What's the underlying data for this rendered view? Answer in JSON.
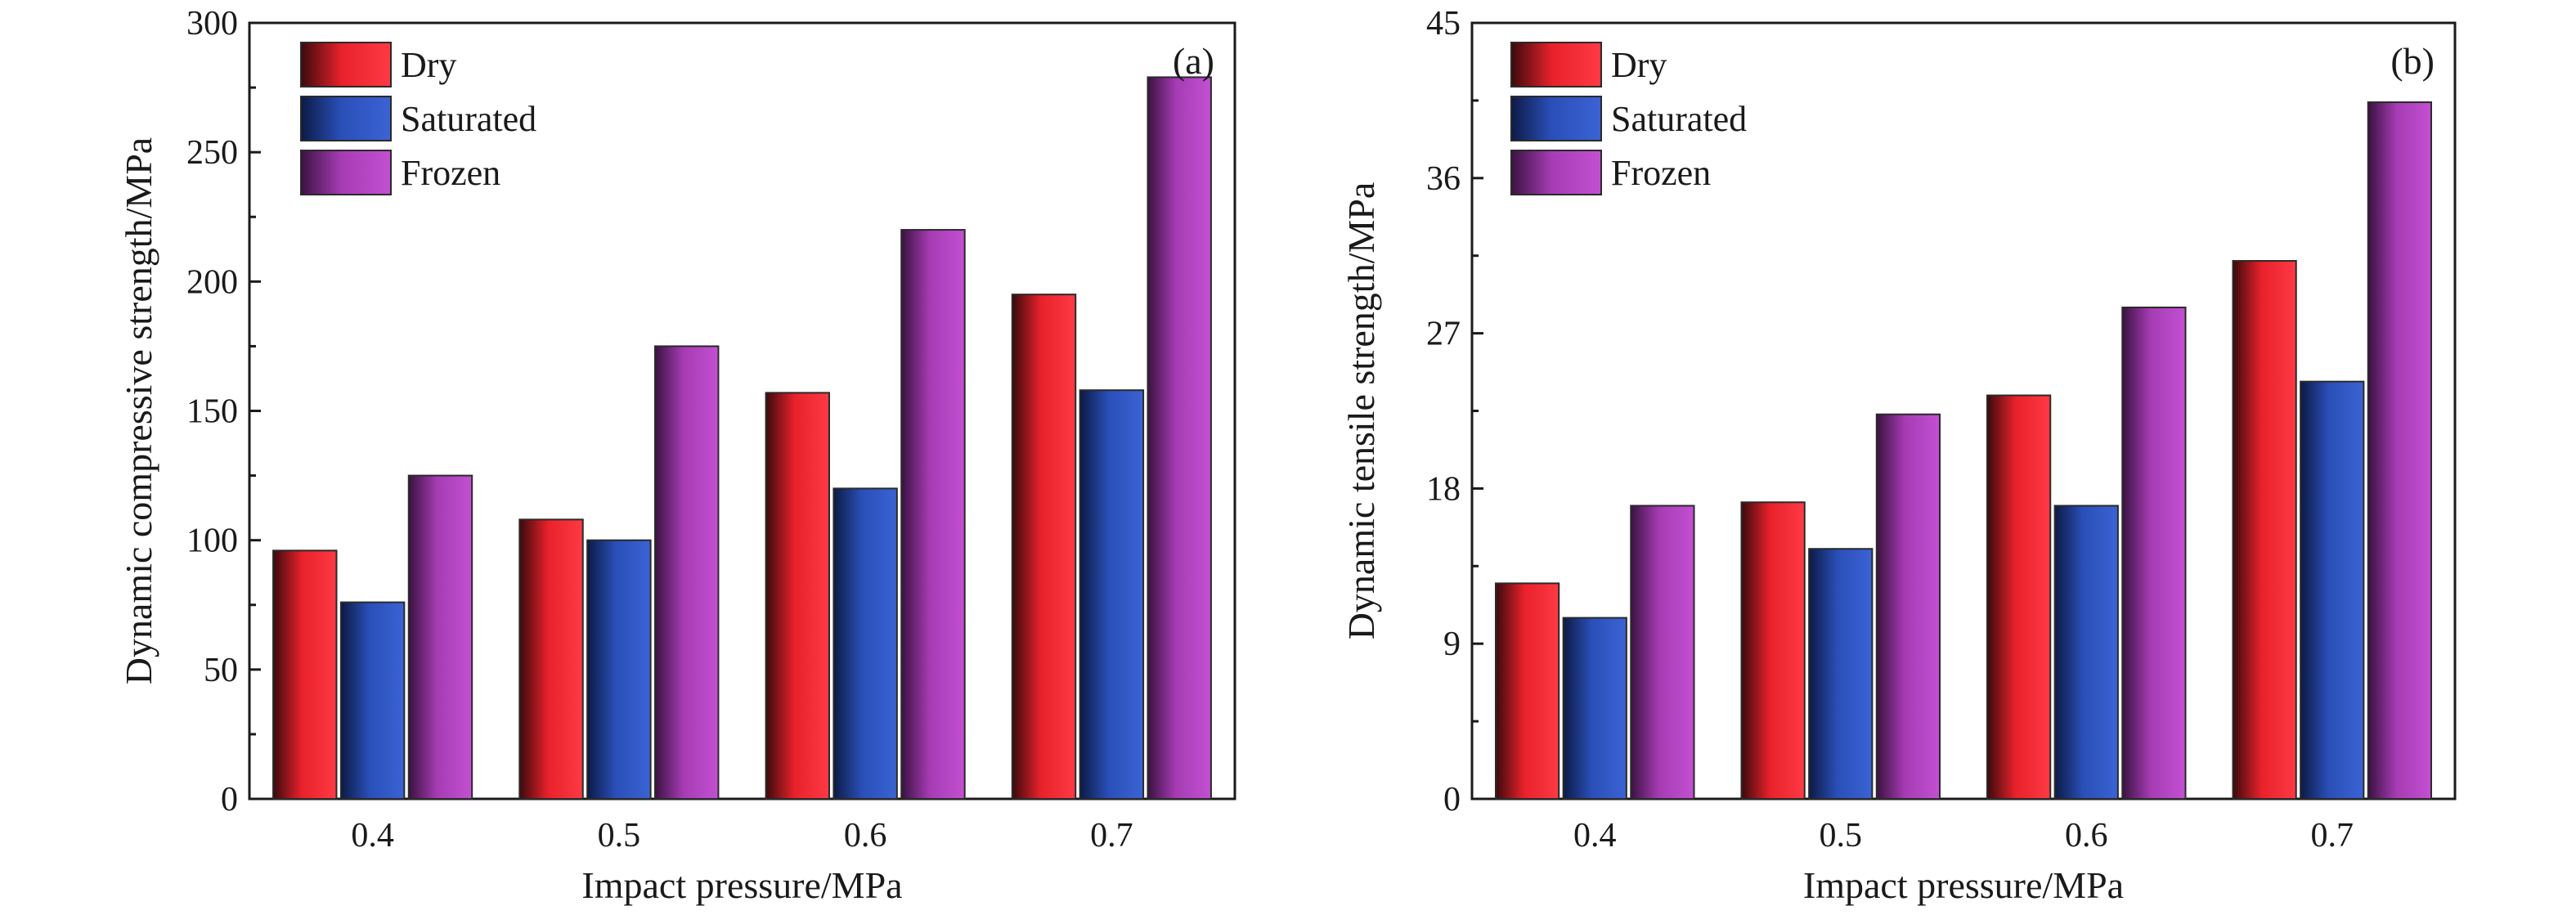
{
  "chart_data": [
    {
      "type": "bar",
      "panel_label": "(a)",
      "categories": [
        "0.4",
        "0.5",
        "0.6",
        "0.7"
      ],
      "series": [
        {
          "name": "Dry",
          "values": [
            96,
            108,
            157,
            195
          ]
        },
        {
          "name": "Saturated",
          "values": [
            76,
            100,
            120,
            158
          ]
        },
        {
          "name": "Frozen",
          "values": [
            125,
            175,
            220,
            279
          ]
        }
      ],
      "xlabel": "Impact pressure/MPa",
      "ylabel": "Dynamic compressive strength/MPa",
      "ylim": [
        0,
        300
      ],
      "yticks": [
        "0",
        "50",
        "100",
        "150",
        "200",
        "250",
        "300"
      ],
      "legend_position": "top-left",
      "grid": false
    },
    {
      "type": "bar",
      "panel_label": "(b)",
      "categories": [
        "0.4",
        "0.5",
        "0.6",
        "0.7"
      ],
      "series": [
        {
          "name": "Dry",
          "values": [
            12.5,
            17.2,
            23.4,
            31.2
          ]
        },
        {
          "name": "Saturated",
          "values": [
            10.5,
            14.5,
            17,
            24.2
          ]
        },
        {
          "name": "Frozen",
          "values": [
            17,
            22.3,
            28.5,
            40.4
          ]
        }
      ],
      "xlabel": "Impact pressure/MPa",
      "ylabel": "Dynamic tensile strength/MPa",
      "ylim": [
        0,
        45
      ],
      "yticks": [
        "0",
        "9",
        "18",
        "27",
        "36",
        "45"
      ],
      "legend_position": "top-left",
      "grid": false
    }
  ],
  "colors": {
    "Dry": "#e8212b",
    "Saturated": "#2a4fb8",
    "Frozen": "#a63cb4"
  }
}
